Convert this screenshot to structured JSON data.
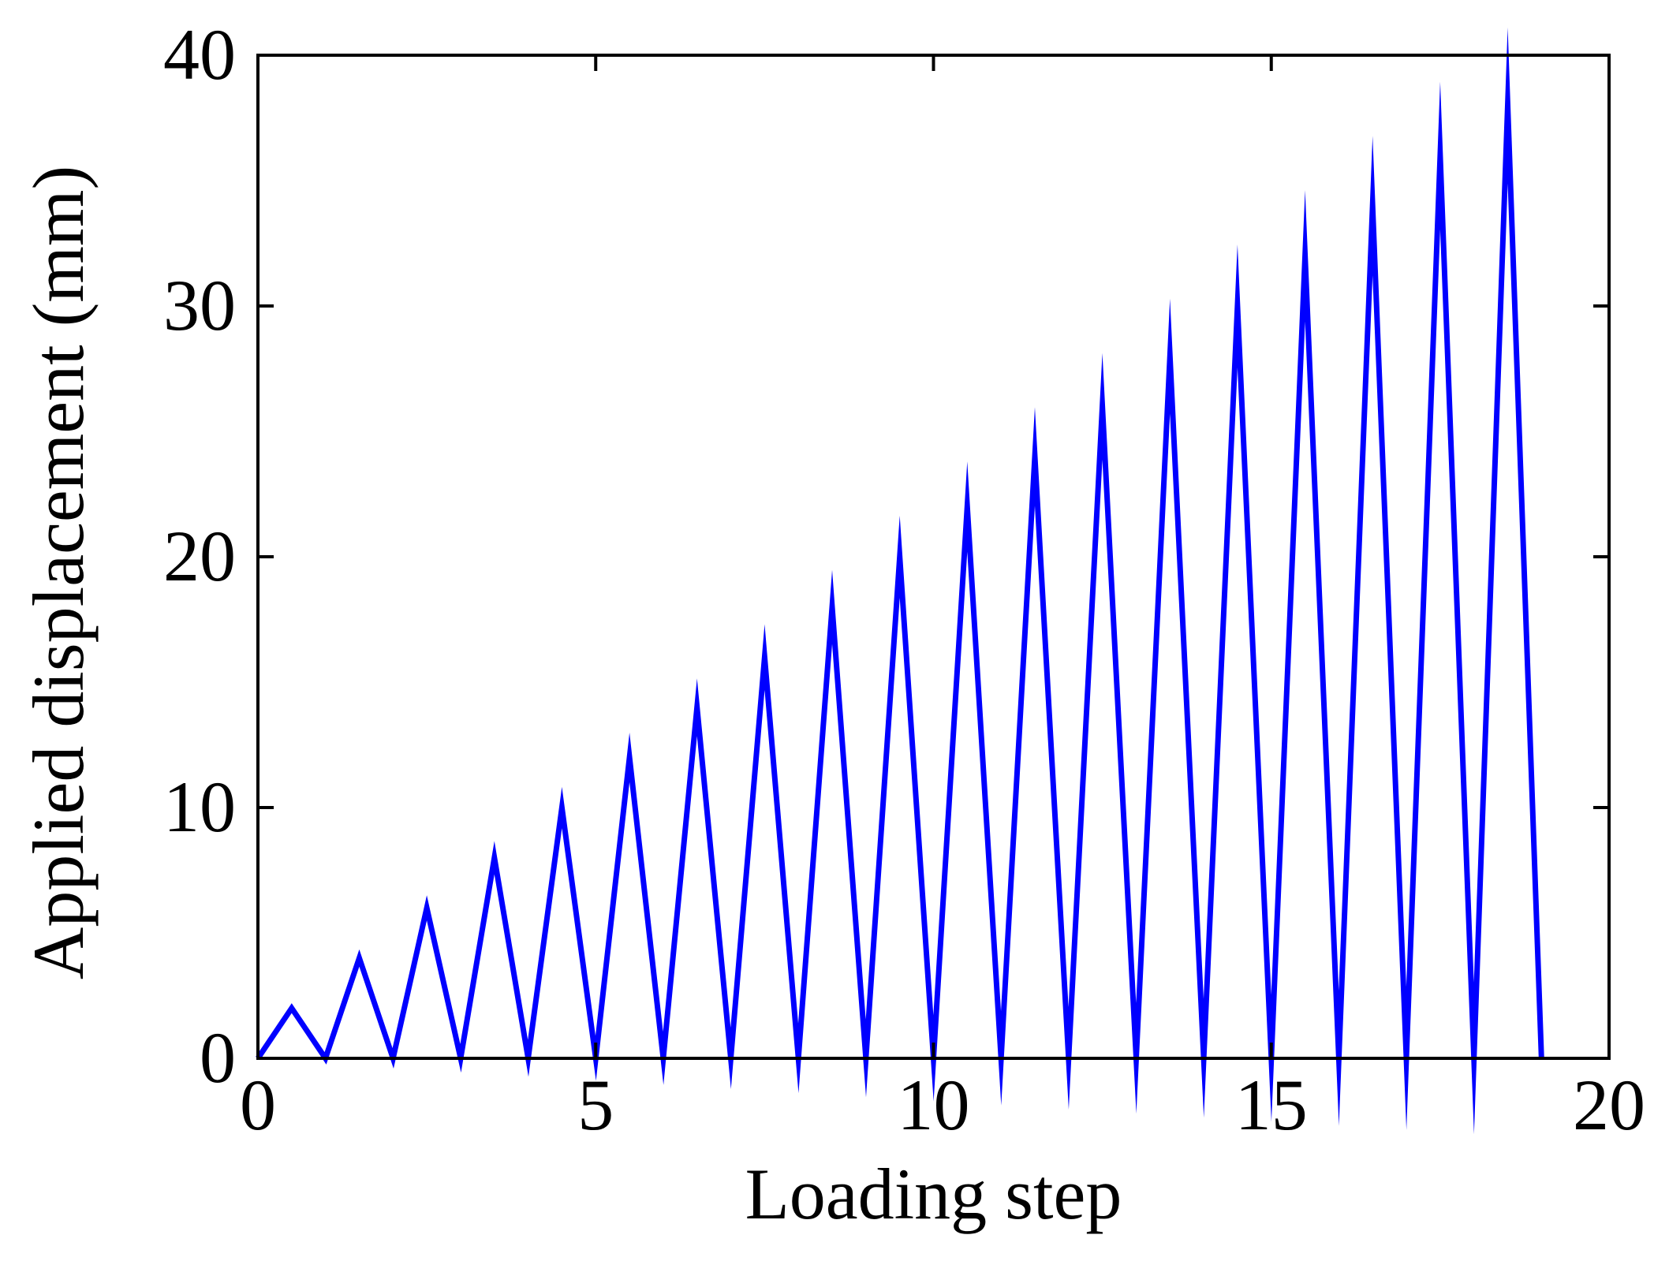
{
  "chart_data": {
    "type": "line",
    "xlabel": "Loading step",
    "ylabel": "Applied displacement (mm)",
    "xlim": [
      0,
      20
    ],
    "ylim": [
      0,
      40
    ],
    "xticks": [
      0,
      5,
      10,
      15,
      20
    ],
    "yticks": [
      0,
      10,
      20,
      30,
      40
    ],
    "grid": false,
    "legend": "none",
    "series": [
      {
        "color": "#0000ff",
        "x": [
          0,
          0.5,
          1,
          1.5,
          2,
          2.5,
          3,
          3.5,
          4,
          4.5,
          5,
          5.5,
          6,
          6.5,
          7,
          7.5,
          8,
          8.5,
          9,
          9.5,
          10,
          10.5,
          11,
          11.5,
          12,
          12.5,
          13,
          13.5,
          14,
          14.5,
          15,
          15.5,
          16,
          16.5,
          17,
          17.5,
          18,
          18.5,
          19
        ],
        "y": [
          0,
          2,
          0,
          4,
          0,
          6,
          0,
          8,
          0,
          10,
          0,
          12,
          0,
          14,
          0,
          16,
          0,
          18,
          0,
          20,
          0,
          22,
          0,
          24,
          0,
          26,
          0,
          28,
          0,
          30,
          0,
          32,
          0,
          34,
          0,
          36,
          0,
          38,
          0
        ]
      }
    ]
  }
}
